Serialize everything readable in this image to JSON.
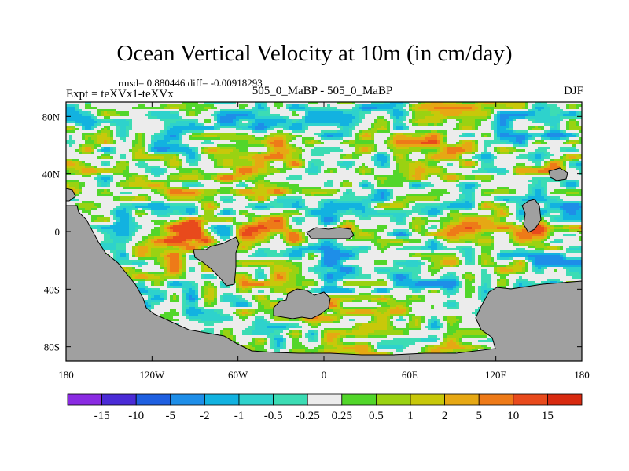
{
  "chart_data": {
    "type": "heatmap",
    "title": "Ocean Vertical Velocity at 10m (in cm/day)",
    "stats_line": "rmsd= 0.880446 diff= -0.00918293",
    "left_label": "Expt = teXVx1-teXVx",
    "center_label": "505_0_MaBP - 505_0_MaBP",
    "right_label": "DJF",
    "x_ticks": [
      "180",
      "120W",
      "60W",
      "0",
      "60E",
      "120E",
      "180"
    ],
    "y_ticks": [
      "80N",
      "40N",
      "0",
      "40S",
      "80S"
    ],
    "xlim": [
      -180,
      180
    ],
    "ylim": [
      -90,
      90
    ],
    "colorbar": {
      "labels": [
        "-15",
        "-10",
        "-5",
        "-2",
        "-1",
        "-0.5",
        "-0.25",
        "0.25",
        "0.5",
        "1",
        "2",
        "5",
        "10",
        "15"
      ],
      "colors": [
        "#8a2be2",
        "#4a2bd6",
        "#1e5fe0",
        "#1e8ee8",
        "#12b2e0",
        "#2ed2cc",
        "#3cdcb4",
        "#ececec",
        "#52d62a",
        "#9ad212",
        "#c8c80a",
        "#e6a814",
        "#ee7a18",
        "#e84a1c",
        "#d82a10"
      ]
    },
    "land_color": "#a0a0a0"
  }
}
